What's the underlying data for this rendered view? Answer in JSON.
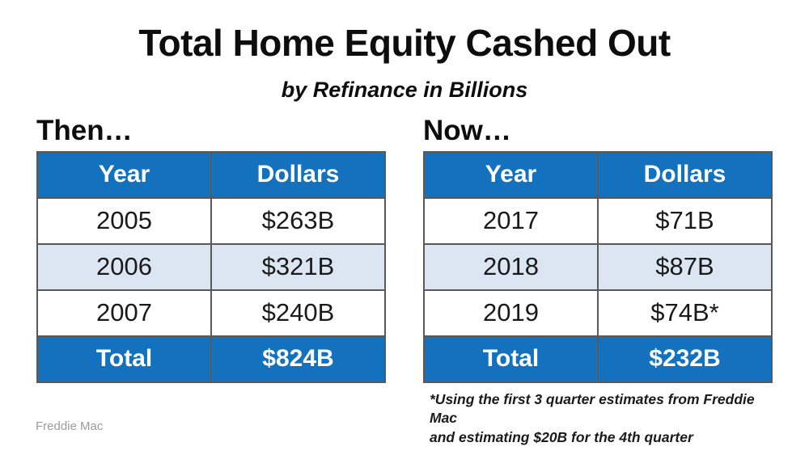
{
  "header": {
    "title": "Total Home Equity Cashed Out",
    "subtitle": "by Refinance in Billions"
  },
  "chart_data": [
    {
      "type": "table",
      "label": "Then…",
      "columns": [
        "Year",
        "Dollars"
      ],
      "rows": [
        [
          "2005",
          "$263B"
        ],
        [
          "2006",
          "$321B"
        ],
        [
          "2007",
          "$240B"
        ]
      ],
      "total_row": [
        "Total",
        "$824B"
      ]
    },
    {
      "type": "table",
      "label": "Now…",
      "columns": [
        "Year",
        "Dollars"
      ],
      "rows": [
        [
          "2017",
          "$71B"
        ],
        [
          "2018",
          "$87B"
        ],
        [
          "2019",
          "$74B*"
        ]
      ],
      "total_row": [
        "Total",
        "$232B"
      ]
    }
  ],
  "footnote": {
    "line1": "*Using the first 3 quarter estimates from Freddie Mac",
    "line2": "and estimating $20B for the 4th quarter"
  },
  "footer": {
    "source": "Freddie Mac"
  },
  "colors": {
    "header_blue": "#1471BE",
    "alt_row_blue": "#DCE6F2",
    "table_border": "#595959"
  }
}
